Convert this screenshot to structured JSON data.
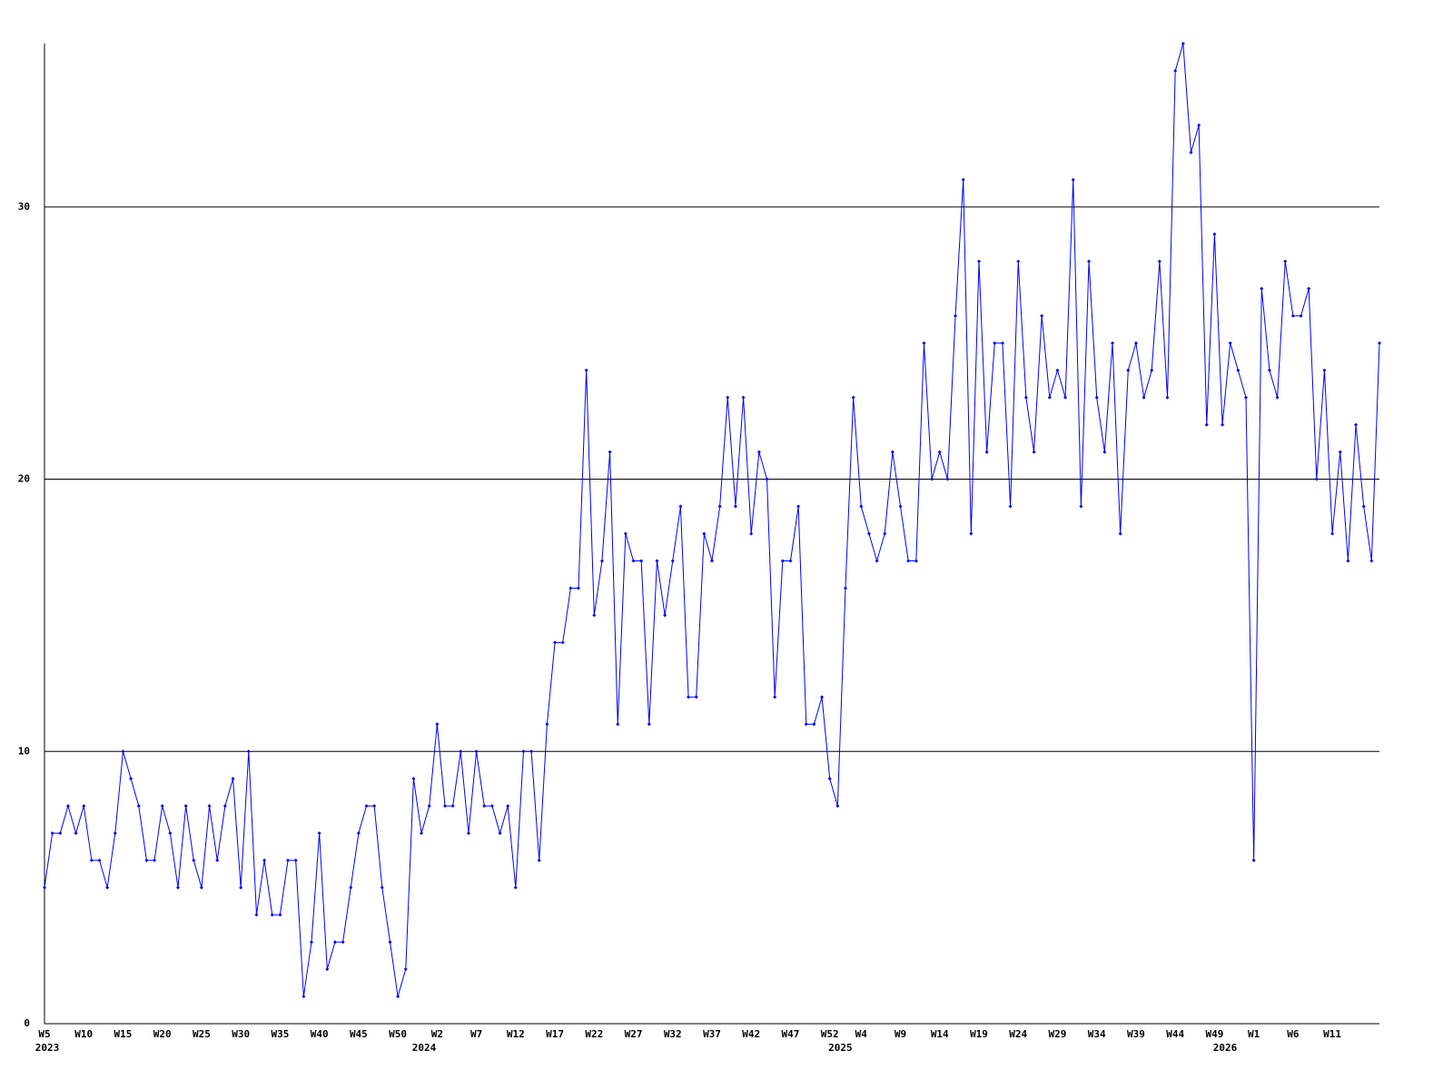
{
  "chart_data": {
    "type": "line",
    "categories": [
      "W5",
      null,
      null,
      null,
      null,
      "W10",
      null,
      null,
      null,
      null,
      "W15",
      null,
      null,
      null,
      null,
      "W20",
      null,
      null,
      null,
      null,
      "W25",
      null,
      null,
      null,
      null,
      "W30",
      null,
      null,
      null,
      null,
      "W35",
      null,
      null,
      null,
      null,
      "W40",
      null,
      null,
      null,
      null,
      "W45",
      null,
      null,
      null,
      null,
      "W50",
      null,
      null,
      null,
      null,
      "W2",
      null,
      null,
      null,
      null,
      "W7",
      null,
      null,
      null,
      null,
      "W12",
      null,
      null,
      null,
      null,
      "W17",
      null,
      null,
      null,
      null,
      "W22",
      null,
      null,
      null,
      null,
      "W27",
      null,
      null,
      null,
      null,
      "W32",
      null,
      null,
      null,
      null,
      "W37",
      null,
      null,
      null,
      null,
      "W42",
      null,
      null,
      null,
      null,
      "W47",
      null,
      null,
      null,
      null,
      "W52",
      null,
      null,
      null,
      "W4",
      null,
      null,
      null,
      null,
      "W9",
      null,
      null,
      null,
      null,
      "W14",
      null,
      null,
      null,
      null,
      "W19",
      null,
      null,
      null,
      null,
      "W24",
      null,
      null,
      null,
      null,
      "W29",
      null,
      null,
      null,
      null,
      "W34",
      null,
      null,
      null,
      null,
      "W39",
      null,
      null,
      null,
      null,
      "W44",
      null,
      null,
      null,
      null,
      "W49",
      null,
      null,
      null,
      null,
      "W1",
      null,
      null,
      null,
      null,
      "W6",
      null,
      null,
      null,
      null,
      "W11",
      null,
      null,
      null,
      null,
      null,
      null
    ],
    "years": [
      "2023",
      null,
      null,
      null,
      null,
      null,
      null,
      null,
      null,
      null,
      null,
      null,
      null,
      null,
      null,
      null,
      null,
      null,
      null,
      null,
      null,
      null,
      null,
      null,
      null,
      null,
      null,
      null,
      null,
      null,
      null,
      null,
      null,
      null,
      null,
      null,
      null,
      null,
      null,
      null,
      null,
      null,
      null,
      null,
      null,
      null,
      null,
      null,
      "2024",
      null,
      null,
      null,
      null,
      null,
      null,
      null,
      null,
      null,
      null,
      null,
      null,
      null,
      null,
      null,
      null,
      null,
      null,
      null,
      null,
      null,
      null,
      null,
      null,
      null,
      null,
      null,
      null,
      null,
      null,
      null,
      null,
      null,
      null,
      null,
      null,
      null,
      null,
      null,
      null,
      null,
      null,
      null,
      null,
      null,
      null,
      null,
      null,
      null,
      null,
      null,
      null,
      "2025",
      null,
      null,
      null,
      null,
      null,
      null,
      null,
      null,
      null,
      null,
      null,
      null,
      null,
      null,
      null,
      null,
      null,
      null,
      null,
      null,
      null,
      null,
      null,
      null,
      null,
      null,
      null,
      null,
      null,
      null,
      null,
      null,
      null,
      null,
      null,
      null,
      null,
      null,
      null,
      null,
      null,
      null,
      null,
      null,
      null,
      null,
      null,
      null,
      "2026",
      null,
      null,
      null,
      null,
      null,
      null,
      null,
      null,
      null,
      null,
      null,
      null,
      null,
      null,
      null,
      null
    ],
    "values": [
      5,
      7,
      7,
      8,
      7,
      8,
      6,
      6,
      5,
      7,
      10,
      9,
      8,
      6,
      6,
      8,
      7,
      5,
      8,
      6,
      5,
      8,
      6,
      8,
      9,
      5,
      10,
      4,
      6,
      4,
      4,
      6,
      6,
      1,
      3,
      7,
      2,
      3,
      3,
      5,
      7,
      8,
      8,
      5,
      3,
      1,
      2,
      9,
      7,
      8,
      11,
      8,
      8,
      10,
      7,
      10,
      8,
      8,
      7,
      8,
      5,
      10,
      10,
      6,
      11,
      14,
      14,
      16,
      16,
      24,
      15,
      17,
      21,
      11,
      18,
      17,
      17,
      11,
      17,
      15,
      17,
      19,
      12,
      12,
      18,
      17,
      19,
      23,
      19,
      23,
      18,
      21,
      20,
      12,
      17,
      17,
      19,
      11,
      11,
      12,
      9,
      8,
      16,
      23,
      19,
      18,
      17,
      18,
      21,
      19,
      17,
      17,
      25,
      20,
      21,
      20,
      26,
      31,
      18,
      28,
      21,
      25,
      25,
      19,
      28,
      23,
      21,
      26,
      23,
      24,
      23,
      31,
      19,
      28,
      23,
      21,
      25,
      18,
      24,
      25,
      23,
      24,
      28,
      23,
      35,
      36,
      32,
      33,
      22,
      29,
      22,
      25,
      24,
      23,
      6,
      27,
      24,
      23,
      28,
      26,
      26,
      27,
      20,
      24,
      18,
      21,
      17,
      22,
      19,
      17,
      25
    ],
    "color": "#0000ff",
    "ylim": [
      0,
      36
    ],
    "yticks": [
      0,
      10,
      20,
      30
    ],
    "grid": true
  }
}
